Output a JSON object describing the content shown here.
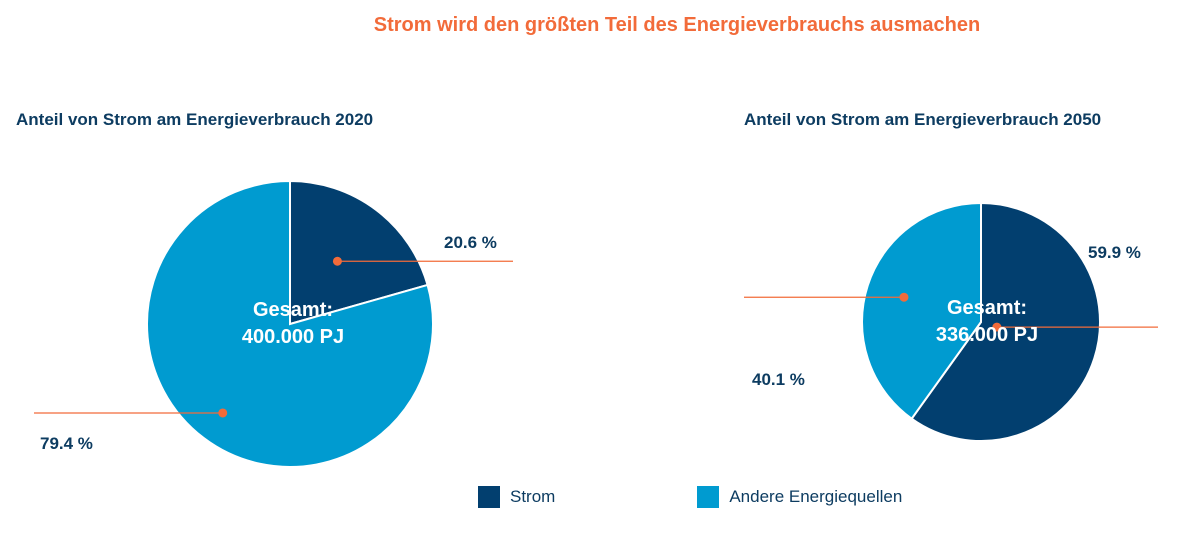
{
  "title": "Strom wird den größten Teil des Energieverbrauchs ausmachen",
  "colors": {
    "strom": "#023f6f",
    "andere": "#009bd0",
    "accent": "#f26b3a",
    "text": "#0d3c61"
  },
  "legend": [
    {
      "label": "Strom",
      "color": "#023f6f"
    },
    {
      "label": "Andere Energiequellen",
      "color": "#009bd0"
    }
  ],
  "chart_data": [
    {
      "type": "pie",
      "title": "Anteil von Strom am Energieverbrauch 2020",
      "center_label": [
        "Gesamt:",
        "400.000 PJ"
      ],
      "categories": [
        "Strom",
        "Andere Energiequellen"
      ],
      "values": [
        20.6,
        79.4
      ],
      "value_labels": [
        "20.6 %",
        "79.4 %"
      ]
    },
    {
      "type": "pie",
      "title": "Anteil von Strom am Energieverbrauch 2050",
      "center_label": [
        "Gesamt:",
        "336.000 PJ"
      ],
      "categories": [
        "Strom",
        "Andere Energiequellen"
      ],
      "values": [
        59.9,
        40.1
      ],
      "value_labels": [
        "59.9 %",
        "40.1 %"
      ]
    }
  ]
}
